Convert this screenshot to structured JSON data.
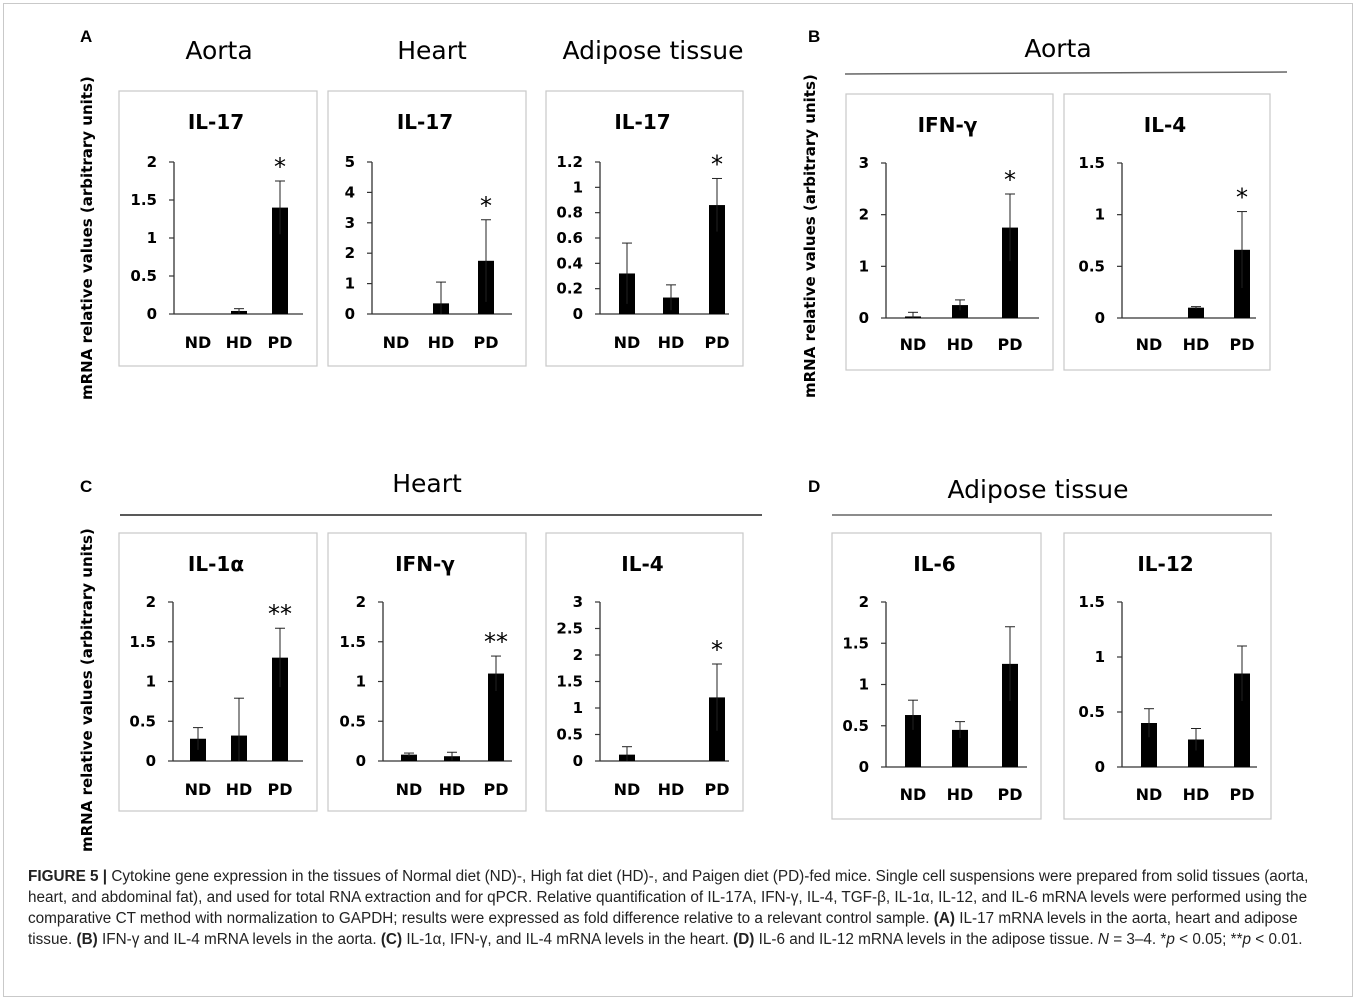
{
  "y_axis_title": "mRNA relative values (arbitrary units)",
  "panels": [
    {
      "letter": "A",
      "headers": [
        "Aorta",
        "Heart",
        "Adipose tissue"
      ]
    },
    {
      "letter": "B",
      "headers": [
        "Aorta"
      ]
    },
    {
      "letter": "C",
      "headers": [
        "Heart"
      ]
    },
    {
      "letter": "D",
      "headers": [
        "Adipose tissue"
      ]
    }
  ],
  "chart_data": [
    {
      "panel": "A",
      "tissue": "Aorta",
      "type": "bar",
      "title": "IL-17",
      "categories": [
        "ND",
        "HD",
        "PD"
      ],
      "values": [
        0,
        0.04,
        1.4
      ],
      "errors": [
        0,
        0.03,
        0.35
      ],
      "ylim": [
        0,
        2
      ],
      "yticks": [
        "0",
        "0.5",
        "1",
        "1.5",
        "2"
      ],
      "significance": [
        "",
        "",
        "*"
      ]
    },
    {
      "panel": "A",
      "tissue": "Heart",
      "type": "bar",
      "title": "IL-17",
      "categories": [
        "ND",
        "HD",
        "PD"
      ],
      "values": [
        0,
        0.35,
        1.75
      ],
      "errors": [
        0,
        0.7,
        1.35
      ],
      "ylim": [
        0,
        5
      ],
      "yticks": [
        "0",
        "1",
        "2",
        "3",
        "4",
        "5"
      ],
      "significance": [
        "",
        "",
        "*"
      ]
    },
    {
      "panel": "A",
      "tissue": "Adipose tissue",
      "type": "bar",
      "title": "IL-17",
      "categories": [
        "ND",
        "HD",
        "PD"
      ],
      "values": [
        0.32,
        0.13,
        0.86
      ],
      "errors": [
        0.24,
        0.1,
        0.21
      ],
      "ylim": [
        0,
        1.2
      ],
      "yticks": [
        "0",
        "0.2",
        "0.4",
        "0.6",
        "0.8",
        "1",
        "1.2"
      ],
      "significance": [
        "",
        "",
        "*"
      ]
    },
    {
      "panel": "B",
      "tissue": "Aorta",
      "type": "bar",
      "title": "IFN-γ",
      "categories": [
        "ND",
        "HD",
        "PD"
      ],
      "values": [
        0.03,
        0.25,
        1.75
      ],
      "errors": [
        0.08,
        0.1,
        0.65
      ],
      "ylim": [
        0,
        3
      ],
      "yticks": [
        "0",
        "1",
        "2",
        "3"
      ],
      "significance": [
        "",
        "",
        "*"
      ]
    },
    {
      "panel": "B",
      "tissue": "Aorta",
      "type": "bar",
      "title": "IL-4",
      "categories": [
        "ND",
        "HD",
        "PD"
      ],
      "values": [
        0,
        0.1,
        0.66
      ],
      "errors": [
        0,
        0.01,
        0.37
      ],
      "ylim": [
        0,
        1.5
      ],
      "yticks": [
        "0",
        "0.5",
        "1",
        "1.5"
      ],
      "significance": [
        "",
        "",
        "*"
      ]
    },
    {
      "panel": "C",
      "tissue": "Heart",
      "type": "bar",
      "title": "IL-1α",
      "categories": [
        "ND",
        "HD",
        "PD"
      ],
      "values": [
        0.28,
        0.32,
        1.3
      ],
      "errors": [
        0.14,
        0.47,
        0.37
      ],
      "ylim": [
        0,
        2
      ],
      "yticks": [
        "0",
        "0.5",
        "1",
        "1.5",
        "2"
      ],
      "significance": [
        "",
        "",
        "**"
      ]
    },
    {
      "panel": "C",
      "tissue": "Heart",
      "type": "bar",
      "title": "IFN-γ",
      "categories": [
        "ND",
        "HD",
        "PD"
      ],
      "values": [
        0.08,
        0.06,
        1.1
      ],
      "errors": [
        0.02,
        0.05,
        0.22
      ],
      "ylim": [
        0,
        2
      ],
      "yticks": [
        "0",
        "0.5",
        "1",
        "1.5",
        "2"
      ],
      "significance": [
        "",
        "",
        "**"
      ]
    },
    {
      "panel": "C",
      "tissue": "Heart",
      "type": "bar",
      "title": "IL-4",
      "categories": [
        "ND",
        "HD",
        "PD"
      ],
      "values": [
        0.12,
        0,
        1.2
      ],
      "errors": [
        0.15,
        0,
        0.63
      ],
      "ylim": [
        0,
        3
      ],
      "yticks": [
        "0",
        "0.5",
        "1",
        "1.5",
        "2",
        "2.5",
        "3"
      ],
      "significance": [
        "",
        "",
        "*"
      ]
    },
    {
      "panel": "D",
      "tissue": "Adipose tissue",
      "type": "bar",
      "title": "IL-6",
      "categories": [
        "ND",
        "HD",
        "PD"
      ],
      "values": [
        0.63,
        0.45,
        1.25
      ],
      "errors": [
        0.18,
        0.1,
        0.45
      ],
      "ylim": [
        0,
        2
      ],
      "yticks": [
        "0",
        "0.5",
        "1",
        "1.5",
        "2"
      ],
      "significance": [
        "",
        "",
        ""
      ]
    },
    {
      "panel": "D",
      "tissue": "Adipose tissue",
      "type": "bar",
      "title": "IL-12",
      "categories": [
        "ND",
        "HD",
        "PD"
      ],
      "values": [
        0.4,
        0.25,
        0.85
      ],
      "errors": [
        0.13,
        0.1,
        0.25
      ],
      "ylim": [
        0,
        1.5
      ],
      "yticks": [
        "0",
        "0.5",
        "1",
        "1.5"
      ],
      "significance": [
        "",
        "",
        ""
      ]
    }
  ],
  "caption": {
    "label": "FIGURE 5 |",
    "intro": " Cytokine gene expression in the tissues of Normal diet (ND)-, High fat diet (HD)-, and Paigen diet (PD)-fed mice. Single cell suspensions were prepared from solid tissues (aorta, heart, and abdominal fat), and used for total RNA extraction and for qPCR. Relative quantification of IL-17A, IFN-γ, IL-4, TGF-β, IL-1α, IL-12, and IL-6 mRNA levels were performed using the comparative CT method with normalization to GAPDH; results were expressed as fold difference relative to a relevant control sample. ",
    "a_label": "(A)",
    "a_text": " IL-17 mRNA levels in the aorta, heart and adipose tissue. ",
    "b_label": "(B)",
    "b_text": " IFN-γ and IL-4 mRNA levels in the aorta. ",
    "c_label": "(C)",
    "c_text": " IL-1α, IFN-γ, and IL-4 mRNA levels in the heart. ",
    "d_label": "(D)",
    "d_text": " IL-6 and IL-12 mRNA levels in the adipose tissue. ",
    "n_label": "N",
    "n_text": " = 3–4. *",
    "p1": "p",
    "p1_text": " < 0.05; **",
    "p2": "p",
    "p2_text": " < 0.01."
  }
}
